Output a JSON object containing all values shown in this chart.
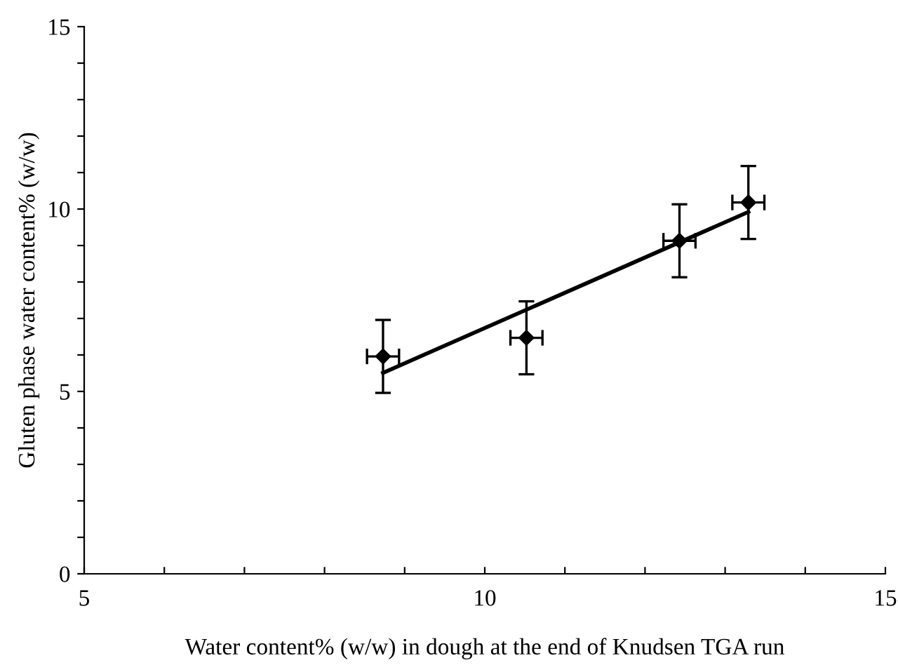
{
  "chart_data": {
    "type": "scatter",
    "xlabel": "Water content% (w/w) in dough at the end of Knudsen TGA run",
    "ylabel": "Gluten phase water content% (w/w)",
    "xlim": [
      5,
      15
    ],
    "ylim": [
      0,
      15
    ],
    "xticks": [
      5,
      {
        "value": 6,
        "label": null
      },
      {
        "value": 7,
        "label": null
      },
      {
        "value": 8,
        "label": null
      },
      {
        "value": 9,
        "label": null
      },
      10,
      {
        "value": 11,
        "label": null
      },
      {
        "value": 12,
        "label": null
      },
      {
        "value": 13,
        "label": null
      },
      {
        "value": 14,
        "label": null
      },
      15
    ],
    "yticks": [
      0,
      {
        "value": 1,
        "label": null
      },
      {
        "value": 2,
        "label": null
      },
      {
        "value": 3,
        "label": null
      },
      {
        "value": 4,
        "label": null
      },
      5,
      {
        "value": 6,
        "label": null
      },
      {
        "value": 7,
        "label": null
      },
      {
        "value": 8,
        "label": null
      },
      {
        "value": 9,
        "label": null
      },
      10,
      {
        "value": 11,
        "label": null
      },
      {
        "value": 12,
        "label": null
      },
      {
        "value": 13,
        "label": null
      },
      {
        "value": 14,
        "label": null
      },
      15
    ],
    "grid": false,
    "legend": false,
    "series": [
      {
        "color": "#000000",
        "marker": "diamond",
        "x": [
          8.73,
          10.52,
          12.43,
          13.29
        ],
        "values": [
          5.96,
          6.47,
          9.13,
          10.18
        ],
        "errors": [
          1,
          1,
          1,
          1
        ],
        "xerrors": [
          0.2,
          0.2,
          0.2,
          0.2
        ]
      },
      {
        "type": "line",
        "color": "#000000",
        "marker": "none",
        "line_style": "solid",
        "x": [
          8.73,
          13.29
        ],
        "values": [
          5.51,
          9.92
        ]
      }
    ]
  }
}
